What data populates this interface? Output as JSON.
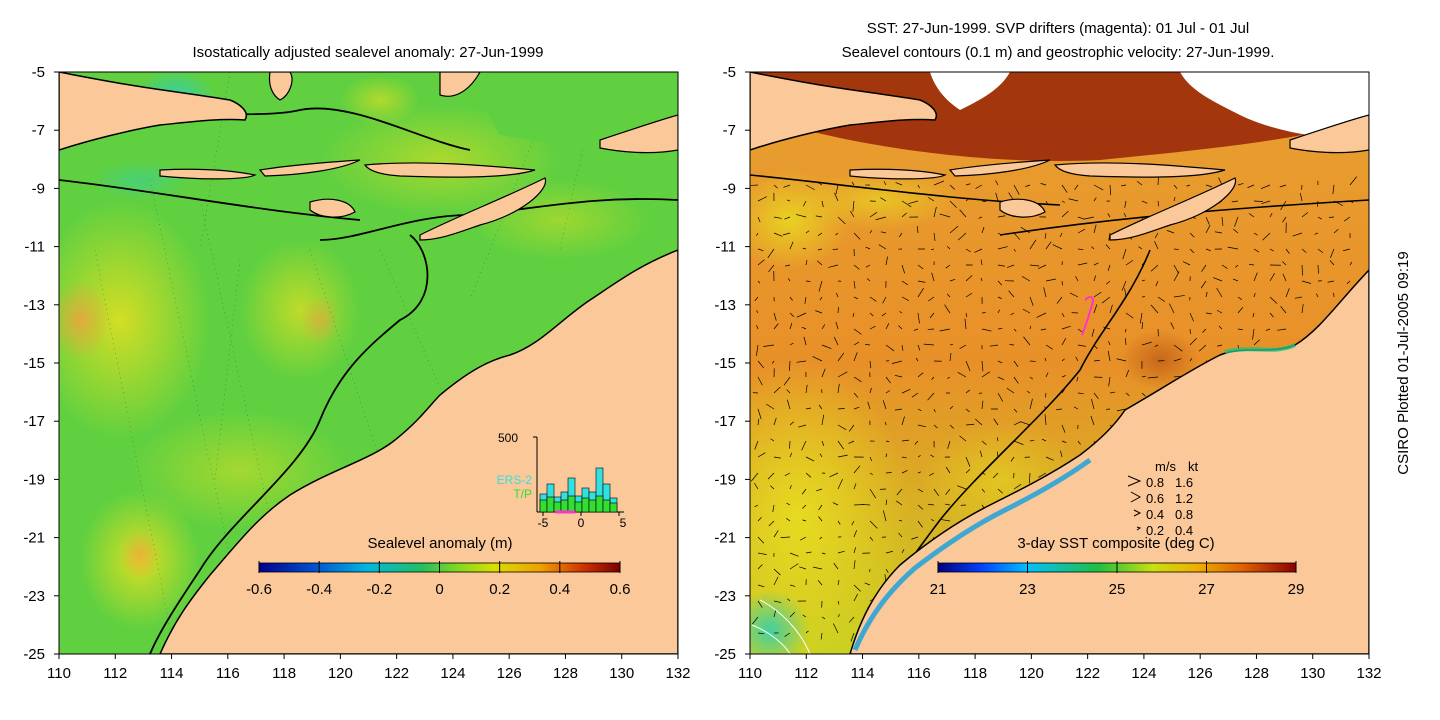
{
  "left_panel": {
    "title": "Isostatically adjusted sealevel anomaly: 27-Jun-1999",
    "x_ticks": [
      "110",
      "112",
      "114",
      "116",
      "118",
      "120",
      "122",
      "124",
      "126",
      "128",
      "130",
      "132"
    ],
    "y_ticks": [
      "-5",
      "-7",
      "-9",
      "-11",
      "-13",
      "-15",
      "-17",
      "-19",
      "-21",
      "-23",
      "-25"
    ],
    "colorbar_title": "Sealevel anomaly (m)",
    "colorbar_ticks": [
      "-0.6",
      "-0.4",
      "-0.2",
      "0",
      "0.2",
      "0.4",
      "0.6"
    ],
    "inset": {
      "y_max_label": "500",
      "x_ticks": [
        "-5",
        "0",
        "5"
      ],
      "legend_ers": "ERS-2",
      "legend_tp": "T/P",
      "ers_color": "#33e0e0",
      "tp_color": "#33dd33"
    }
  },
  "right_panel": {
    "title_line1": "SST: 27-Jun-1999. SVP drifters (magenta): 01 Jul - 01 Jul",
    "title_line2": "Sealevel contours (0.1 m) and geostrophic velocity: 27-Jun-1999.",
    "x_ticks": [
      "110",
      "112",
      "114",
      "116",
      "118",
      "120",
      "122",
      "124",
      "126",
      "128",
      "130",
      "132"
    ],
    "y_ticks": [
      "-5",
      "-7",
      "-9",
      "-11",
      "-13",
      "-15",
      "-17",
      "-19",
      "-21",
      "-23",
      "-25"
    ],
    "colorbar_title": "3-day SST composite (deg C)",
    "colorbar_ticks": [
      "21",
      "23",
      "25",
      "27",
      "29"
    ],
    "speed_legend": {
      "header_ms": "m/s",
      "header_kt": "kt",
      "rows": [
        {
          "ms": "0.8",
          "kt": "1.6"
        },
        {
          "ms": "0.6",
          "kt": "1.2"
        },
        {
          "ms": "0.4",
          "kt": "0.8"
        },
        {
          "ms": "0.2",
          "kt": "0.4"
        }
      ]
    },
    "drifter_color": "#ff33cc"
  },
  "side_label": "CSIRO Plotted 01-Jul-2005 09:19",
  "colors": {
    "land": "#fbc89a",
    "coast": "#000000",
    "sla_ramp": [
      "#00008b",
      "#0050d0",
      "#00b8e0",
      "#20c060",
      "#40d030",
      "#b0e000",
      "#f0c000",
      "#f07000",
      "#c01000",
      "#7a0000"
    ],
    "sst_ramp": [
      "#000080",
      "#0040ff",
      "#00c0ff",
      "#20c040",
      "#b0e010",
      "#f0c000",
      "#f08000",
      "#d04000",
      "#8b0000"
    ]
  }
}
